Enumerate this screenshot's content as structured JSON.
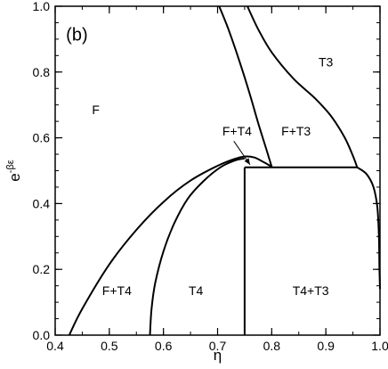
{
  "chart_data": {
    "type": "line",
    "panel_label": "(b)",
    "title": "",
    "xlabel": "η",
    "ylabel": {
      "base": "e",
      "exponent": "-βε"
    },
    "xlim": [
      0.4,
      1.0
    ],
    "ylim": [
      0.0,
      1.0
    ],
    "grid": false,
    "xticks": [
      {
        "value": 0.4,
        "label": "0.4"
      },
      {
        "value": 0.5,
        "label": "0.5"
      },
      {
        "value": 0.6,
        "label": "0.6"
      },
      {
        "value": 0.7,
        "label": "0.7"
      },
      {
        "value": 0.8,
        "label": "0.8"
      },
      {
        "value": 0.9,
        "label": "0.9"
      },
      {
        "value": 1.0,
        "label": "1.0"
      }
    ],
    "yticks": [
      {
        "value": 0.0,
        "label": "0.0"
      },
      {
        "value": 0.2,
        "label": "0.2"
      },
      {
        "value": 0.4,
        "label": "0.4"
      },
      {
        "value": 0.6,
        "label": "0.6"
      },
      {
        "value": 0.8,
        "label": "0.8"
      },
      {
        "value": 1.0,
        "label": "1.0"
      }
    ],
    "x_minor_step": 0.05,
    "y_minor_step": 0.05,
    "series": [
      {
        "key": "outer-left-boundary",
        "points": [
          [
            0.426,
            0.0
          ],
          [
            0.45,
            0.08
          ],
          [
            0.5,
            0.215
          ],
          [
            0.55,
            0.32
          ],
          [
            0.6,
            0.405
          ],
          [
            0.65,
            0.47
          ],
          [
            0.7,
            0.515
          ],
          [
            0.73,
            0.535
          ],
          [
            0.75,
            0.543
          ],
          [
            0.768,
            0.54
          ],
          [
            0.785,
            0.526
          ],
          [
            0.8,
            0.512
          ]
        ]
      },
      {
        "key": "inner-left-boundary",
        "points": [
          [
            0.575,
            0.0
          ],
          [
            0.578,
            0.08
          ],
          [
            0.585,
            0.16
          ],
          [
            0.6,
            0.255
          ],
          [
            0.62,
            0.34
          ],
          [
            0.645,
            0.415
          ],
          [
            0.675,
            0.47
          ],
          [
            0.705,
            0.51
          ],
          [
            0.73,
            0.53
          ],
          [
            0.745,
            0.536
          ],
          [
            0.75,
            0.537
          ]
        ]
      },
      {
        "key": "vertical-boundary",
        "points": [
          [
            0.75,
            0.0
          ],
          [
            0.75,
            0.51
          ]
        ]
      },
      {
        "key": "horizontal-boundary",
        "points": [
          [
            0.75,
            0.51
          ],
          [
            0.958,
            0.51
          ]
        ]
      },
      {
        "key": "right-boundary",
        "points": [
          [
            0.958,
            0.51
          ],
          [
            0.975,
            0.49
          ],
          [
            0.988,
            0.45
          ],
          [
            0.995,
            0.39
          ],
          [
            0.998,
            0.3
          ],
          [
            0.999,
            0.2
          ],
          [
            1.0,
            0.14
          ]
        ]
      },
      {
        "key": "lower-steep-boundary",
        "points": [
          [
            0.703,
            1.0
          ],
          [
            0.72,
            0.93
          ],
          [
            0.74,
            0.835
          ],
          [
            0.76,
            0.73
          ],
          [
            0.775,
            0.645
          ],
          [
            0.79,
            0.565
          ],
          [
            0.8,
            0.512
          ]
        ]
      },
      {
        "key": "upper-curved-boundary",
        "points": [
          [
            0.755,
            1.0
          ],
          [
            0.775,
            0.93
          ],
          [
            0.8,
            0.86
          ],
          [
            0.84,
            0.78
          ],
          [
            0.88,
            0.72
          ],
          [
            0.91,
            0.665
          ],
          [
            0.935,
            0.6
          ],
          [
            0.95,
            0.545
          ],
          [
            0.958,
            0.51
          ]
        ]
      }
    ],
    "region_labels": [
      {
        "text": "F",
        "x": 0.475,
        "y": 0.685
      },
      {
        "text": "T3",
        "x": 0.9,
        "y": 0.83
      },
      {
        "text": "F+T4",
        "x": 0.736,
        "y": 0.62
      },
      {
        "text": "F+T3",
        "x": 0.845,
        "y": 0.62
      },
      {
        "text": "F+T4",
        "x": 0.514,
        "y": 0.135
      },
      {
        "text": "T4",
        "x": 0.66,
        "y": 0.135
      },
      {
        "text": "T4+T3",
        "x": 0.872,
        "y": 0.135
      }
    ],
    "annotation_arrow": {
      "from": [
        0.73,
        0.59
      ],
      "to": [
        0.76,
        0.518
      ]
    }
  }
}
